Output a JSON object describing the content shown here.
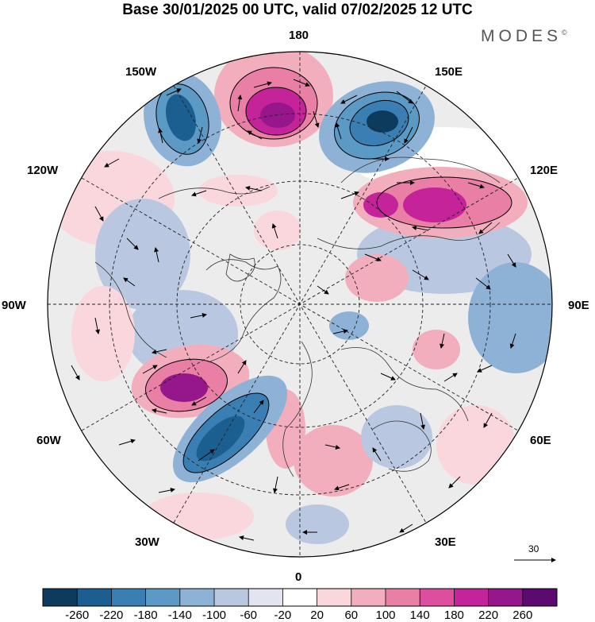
{
  "title": "Base 30/01/2025 00 UTC, valid 07/02/2025 12 UTC",
  "brand": "MODES",
  "brand_mark": "©",
  "lon_labels": {
    "lon_180": "180",
    "lon_150e": "150E",
    "lon_120e": "120E",
    "lon_90e": "90E",
    "lon_60e": "60E",
    "lon_30e": "30E",
    "lon_0": "0",
    "lon_30w": "30W",
    "lon_60w": "60W",
    "lon_90w": "90W",
    "lon_120w": "120W",
    "lon_150w": "150W"
  },
  "wind_reference": "30",
  "colorbar": {
    "colors": [
      "#0d3b5e",
      "#1a5f8f",
      "#3a7fb4",
      "#5a9ac4",
      "#8db2d6",
      "#b9c8e0",
      "#e2e4f0",
      "#ffffff",
      "#f9d7dc",
      "#f2aebd",
      "#ea7fa6",
      "#dd4f9e",
      "#c5239a",
      "#96168c",
      "#5c0a72"
    ],
    "labels": [
      "-260",
      "-220",
      "-180",
      "-140",
      "-100",
      "-60",
      "-20",
      "20",
      "60",
      "100",
      "140",
      "180",
      "220",
      "260"
    ]
  },
  "anomalies": [
    {
      "name": "pacific-high",
      "color": "#ea7fa6",
      "core": "#96168c"
    },
    {
      "name": "siberian-low",
      "color": "#5a9ac4",
      "core": "#0d3b5e"
    },
    {
      "name": "alaska-low",
      "color": "#5a9ac4",
      "core": "#1a5f8f"
    },
    {
      "name": "east-asia-high",
      "color": "#ea7fa6",
      "core": "#c5239a"
    },
    {
      "name": "atlantic-high",
      "color": "#ea7fa6",
      "core": "#c5239a"
    },
    {
      "name": "atlantic-low",
      "color": "#3a7fb4",
      "core": "#0d3b5e"
    }
  ]
}
